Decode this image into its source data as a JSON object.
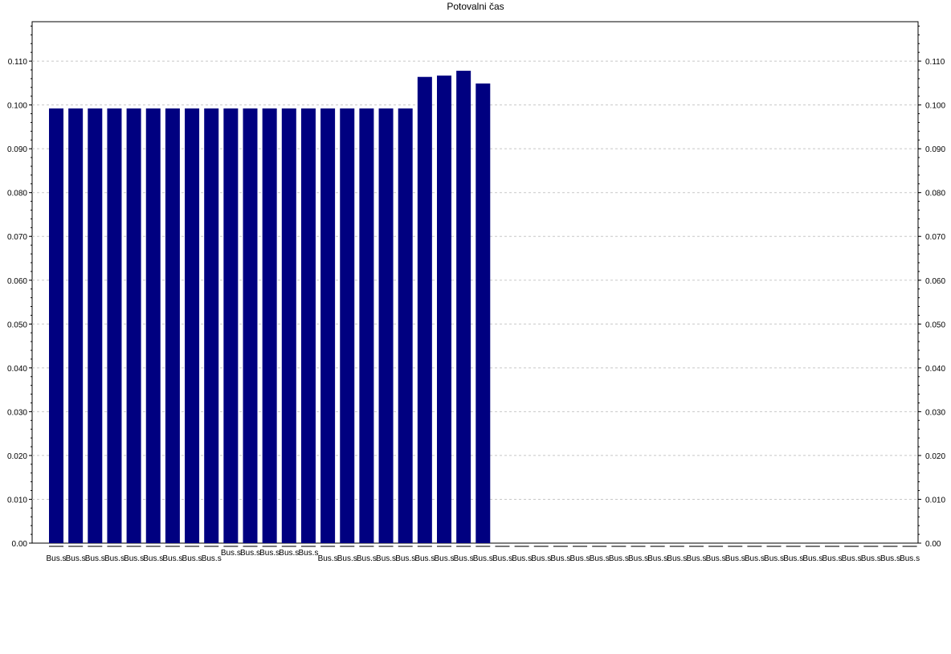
{
  "chart_data": {
    "type": "bar",
    "title": "Potovalni čas",
    "xlabel": "",
    "ylabel": "",
    "ylim": [
      0,
      0.119
    ],
    "yticks": [
      0.0,
      0.01,
      0.02,
      0.03,
      0.04,
      0.05,
      0.06,
      0.07,
      0.08,
      0.09,
      0.1,
      0.11
    ],
    "ytick_labels": [
      "0.00",
      "0.010",
      "0.020",
      "0.030",
      "0.040",
      "0.050",
      "0.060",
      "0.070",
      "0.080",
      "0.090",
      "0.100",
      "0.110"
    ],
    "grid": true,
    "bar_color": "#000080",
    "categories": [
      "Bus.s",
      "Bus.s",
      "Bus.s",
      "Bus.s",
      "Bus.s",
      "Bus.s",
      "Bus.s",
      "Bus.s",
      "Bus.s",
      "Bus.s",
      "Bus.s",
      "Bus.s",
      "Bus.s",
      "Bus.s",
      "Bus.s",
      "Bus.s",
      "Bus.s",
      "Bus.s",
      "Bus.s",
      "Bus.s",
      "Bus.s",
      "Bus.s",
      "Bus.s",
      "Bus.s",
      "Bus.s",
      "Bus.s",
      "Bus.s",
      "Bus.s",
      "Bus.s",
      "Bus.s",
      "Bus.s",
      "Bus.s",
      "Bus.s",
      "Bus.s",
      "Bus.s",
      "Bus.s",
      "Bus.s",
      "Bus.s",
      "Bus.s",
      "Bus.s",
      "Bus.s",
      "Bus.s",
      "Bus.s",
      "Bus.s",
      "Bus.s"
    ],
    "values": [
      0.0992,
      0.0992,
      0.0992,
      0.0992,
      0.0992,
      0.0992,
      0.0992,
      0.0992,
      0.0992,
      0.0992,
      0.0992,
      0.0992,
      0.0992,
      0.0992,
      0.0992,
      0.0992,
      0.0992,
      0.0992,
      0.0992,
      0.1064,
      0.1067,
      0.1078,
      0.1049,
      0.0,
      0.0,
      0.0,
      0.0,
      0.0,
      0.0,
      0.0,
      0.0,
      0.0,
      0.0,
      0.0,
      0.0,
      0.0,
      0.0,
      0.0,
      0.0,
      0.0,
      0.0,
      0.0,
      0.0,
      0.0,
      0.0
    ]
  }
}
